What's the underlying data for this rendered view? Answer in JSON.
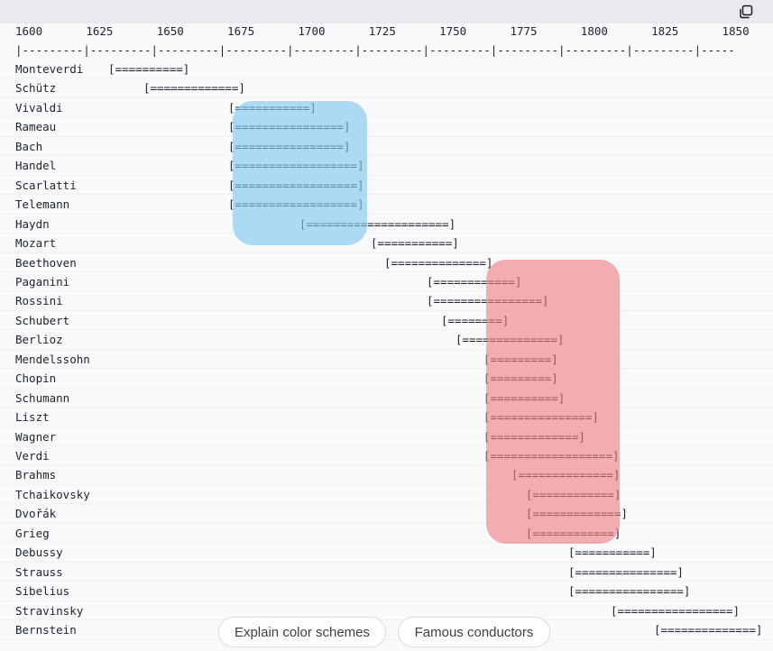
{
  "toolbar": {
    "copy_icon": "copy-icon"
  },
  "timeline": {
    "years": [
      "1600",
      "1625",
      "1650",
      "1675",
      "1700",
      "1725",
      "1750",
      "1775",
      "1800",
      "1825",
      "1850"
    ],
    "ruler": "|---------|---------|---------|---------|---------|---------|---------|---------|---------|---------|-----",
    "composers": [
      {
        "name": "Monteverdi",
        "bar": "[==========]"
      },
      {
        "name": "Schütz",
        "bar": "[=============]"
      },
      {
        "name": "Vivaldi",
        "bar": "[===========]"
      },
      {
        "name": "Rameau",
        "bar": "[================]"
      },
      {
        "name": "Bach",
        "bar": "[================]"
      },
      {
        "name": "Handel",
        "bar": "[==================]"
      },
      {
        "name": "Scarlatti",
        "bar": "[==================]"
      },
      {
        "name": "Telemann",
        "bar": "[==================]"
      },
      {
        "name": "Haydn",
        "bar": "[=====================]"
      },
      {
        "name": "Mozart",
        "bar": "[===========]"
      },
      {
        "name": "Beethoven",
        "bar": "[==============]"
      },
      {
        "name": "Paganini",
        "bar": "[============]"
      },
      {
        "name": "Rossini",
        "bar": "[================]"
      },
      {
        "name": "Schubert",
        "bar": "[========]"
      },
      {
        "name": "Berlioz",
        "bar": "[==============]"
      },
      {
        "name": "Mendelssohn",
        "bar": "[=========]"
      },
      {
        "name": "Chopin",
        "bar": "[=========]"
      },
      {
        "name": "Schumann",
        "bar": "[==========]"
      },
      {
        "name": "Liszt",
        "bar": "[===============]"
      },
      {
        "name": "Wagner",
        "bar": "[=============]"
      },
      {
        "name": "Verdi",
        "bar": "[==================]"
      },
      {
        "name": "Brahms",
        "bar": "[==============]"
      },
      {
        "name": "Tchaikovsky",
        "bar": "[============]"
      },
      {
        "name": "Dvořák",
        "bar": "[=============]"
      },
      {
        "name": "Grieg",
        "bar": "[============]"
      },
      {
        "name": "Debussy",
        "bar": "[===========]"
      },
      {
        "name": "Strauss",
        "bar": "[===============]"
      },
      {
        "name": "Sibelius",
        "bar": "[================]"
      },
      {
        "name": "Stravinsky",
        "bar": "[=================]"
      },
      {
        "name": "Bernstein",
        "bar": "[==============]"
      }
    ]
  },
  "highlights": {
    "baroque_color": "#7dc8f0",
    "romantic_color": "#f0787d"
  },
  "suggestions": [
    {
      "label": "Explain color schemes"
    },
    {
      "label": "Famous conductors"
    }
  ]
}
